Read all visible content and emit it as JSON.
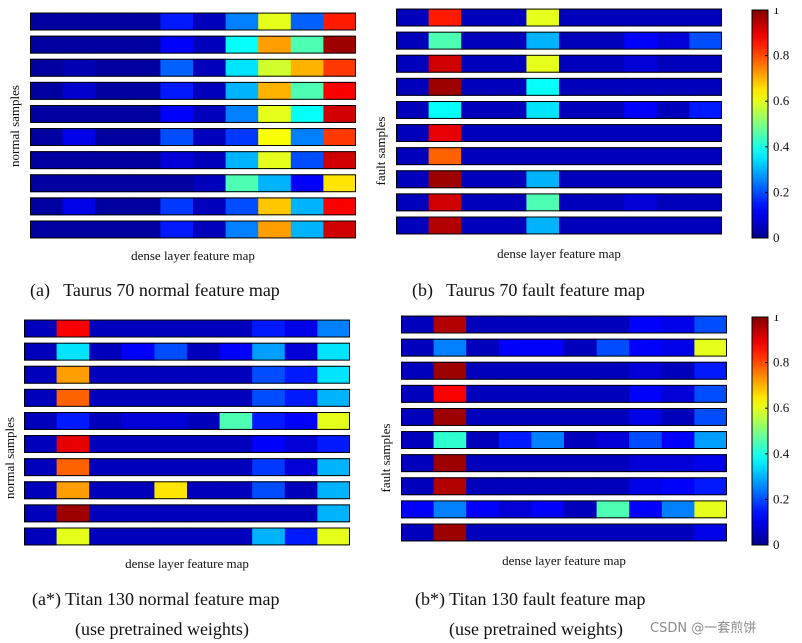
{
  "jet_stops": [
    "#00008f",
    "#0000ff",
    "#00ffff",
    "#ffff00",
    "#ff0000",
    "#800000"
  ],
  "colorbar": {
    "ticks": [
      "0",
      "0.2",
      "0.4",
      "0.6",
      "0.8",
      "1"
    ]
  },
  "watermark": "CSDN @一套煎饼",
  "chart_data": [
    {
      "type": "heatmap",
      "id": "a",
      "caption": "(a)   Taurus 70 normal feature map",
      "ylabel": "normal samples",
      "xlabel": "dense layer feature map",
      "rows": [
        [
          0.02,
          0.02,
          0.02,
          0.02,
          0.15,
          0.05,
          0.25,
          0.6,
          0.22,
          0.85
        ],
        [
          0.02,
          0.02,
          0.02,
          0.02,
          0.12,
          0.05,
          0.38,
          0.72,
          0.45,
          0.97
        ],
        [
          0.02,
          0.04,
          0.02,
          0.02,
          0.22,
          0.05,
          0.35,
          0.58,
          0.7,
          0.82
        ],
        [
          0.02,
          0.07,
          0.02,
          0.02,
          0.15,
          0.05,
          0.3,
          0.7,
          0.45,
          0.88
        ],
        [
          0.02,
          0.02,
          0.02,
          0.02,
          0.12,
          0.05,
          0.25,
          0.6,
          0.38,
          0.92
        ],
        [
          0.02,
          0.1,
          0.02,
          0.02,
          0.2,
          0.05,
          0.18,
          0.62,
          0.25,
          0.82
        ],
        [
          0.02,
          0.02,
          0.02,
          0.02,
          0.08,
          0.05,
          0.3,
          0.6,
          0.2,
          0.92
        ],
        [
          0.02,
          0.02,
          0.02,
          0.02,
          0.02,
          0.05,
          0.45,
          0.3,
          0.12,
          0.65
        ],
        [
          0.02,
          0.1,
          0.02,
          0.02,
          0.18,
          0.05,
          0.2,
          0.68,
          0.3,
          0.88
        ],
        [
          0.02,
          0.02,
          0.02,
          0.02,
          0.15,
          0.05,
          0.25,
          0.72,
          0.3,
          0.92
        ]
      ]
    },
    {
      "type": "heatmap",
      "id": "b",
      "caption": "(b)   Taurus 70 fault feature map",
      "ylabel": "fault samples",
      "xlabel": "dense layer feature map",
      "colorbar": true,
      "rows": [
        [
          0.05,
          0.85,
          0.05,
          0.05,
          0.6,
          0.05,
          0.05,
          0.05,
          0.05,
          0.05
        ],
        [
          0.05,
          0.45,
          0.05,
          0.05,
          0.3,
          0.05,
          0.05,
          0.12,
          0.08,
          0.2
        ],
        [
          0.05,
          0.92,
          0.05,
          0.05,
          0.6,
          0.05,
          0.05,
          0.08,
          0.05,
          0.05
        ],
        [
          0.05,
          0.97,
          0.05,
          0.05,
          0.38,
          0.05,
          0.05,
          0.05,
          0.05,
          0.05
        ],
        [
          0.05,
          0.38,
          0.05,
          0.05,
          0.35,
          0.05,
          0.05,
          0.12,
          0.05,
          0.15
        ],
        [
          0.05,
          0.9,
          0.05,
          0.05,
          0.05,
          0.05,
          0.05,
          0.05,
          0.05,
          0.05
        ],
        [
          0.05,
          0.78,
          0.05,
          0.05,
          0.05,
          0.05,
          0.05,
          0.05,
          0.05,
          0.05
        ],
        [
          0.05,
          0.97,
          0.05,
          0.05,
          0.3,
          0.05,
          0.05,
          0.05,
          0.05,
          0.05
        ],
        [
          0.05,
          0.92,
          0.05,
          0.05,
          0.45,
          0.05,
          0.05,
          0.08,
          0.05,
          0.05
        ],
        [
          0.05,
          0.95,
          0.05,
          0.05,
          0.3,
          0.05,
          0.05,
          0.05,
          0.05,
          0.05
        ]
      ]
    },
    {
      "type": "heatmap",
      "id": "a*",
      "caption": "(a*) Titan 130 normal feature map",
      "caption2": "(use pretrained weights)",
      "ylabel": "normal samples",
      "xlabel": "dense layer feature map",
      "rows": [
        [
          0.05,
          0.88,
          0.05,
          0.05,
          0.05,
          0.05,
          0.05,
          0.15,
          0.1,
          0.25
        ],
        [
          0.05,
          0.35,
          0.05,
          0.12,
          0.2,
          0.05,
          0.12,
          0.28,
          0.08,
          0.35
        ],
        [
          0.05,
          0.72,
          0.05,
          0.05,
          0.05,
          0.05,
          0.05,
          0.2,
          0.15,
          0.35
        ],
        [
          0.05,
          0.78,
          0.05,
          0.05,
          0.05,
          0.05,
          0.05,
          0.2,
          0.15,
          0.3
        ],
        [
          0.05,
          0.15,
          0.05,
          0.08,
          0.08,
          0.05,
          0.45,
          0.15,
          0.12,
          0.6
        ],
        [
          0.05,
          0.9,
          0.05,
          0.05,
          0.05,
          0.05,
          0.05,
          0.12,
          0.08,
          0.15
        ],
        [
          0.05,
          0.78,
          0.05,
          0.05,
          0.05,
          0.05,
          0.05,
          0.18,
          0.08,
          0.3
        ],
        [
          0.05,
          0.72,
          0.05,
          0.05,
          0.65,
          0.05,
          0.05,
          0.2,
          0.05,
          0.3
        ],
        [
          0.05,
          0.97,
          0.05,
          0.05,
          0.05,
          0.05,
          0.05,
          0.05,
          0.05,
          0.3
        ],
        [
          0.05,
          0.6,
          0.05,
          0.05,
          0.05,
          0.05,
          0.05,
          0.3,
          0.15,
          0.6
        ]
      ]
    },
    {
      "type": "heatmap",
      "id": "b*",
      "caption": "(b*) Titan 130 fault feature map",
      "caption2": "(use pretrained weights)",
      "ylabel": "fault samples",
      "xlabel": "dense layer feature map",
      "colorbar": true,
      "rows": [
        [
          0.05,
          0.95,
          0.05,
          0.05,
          0.05,
          0.05,
          0.05,
          0.12,
          0.1,
          0.2
        ],
        [
          0.05,
          0.25,
          0.05,
          0.12,
          0.12,
          0.05,
          0.2,
          0.12,
          0.1,
          0.6
        ],
        [
          0.05,
          0.97,
          0.05,
          0.05,
          0.05,
          0.05,
          0.05,
          0.08,
          0.05,
          0.15
        ],
        [
          0.05,
          0.88,
          0.05,
          0.05,
          0.05,
          0.05,
          0.05,
          0.12,
          0.08,
          0.2
        ],
        [
          0.05,
          0.97,
          0.05,
          0.05,
          0.05,
          0.05,
          0.05,
          0.1,
          0.05,
          0.2
        ],
        [
          0.05,
          0.42,
          0.05,
          0.15,
          0.25,
          0.05,
          0.08,
          0.2,
          0.12,
          0.28
        ],
        [
          0.05,
          0.97,
          0.05,
          0.05,
          0.05,
          0.05,
          0.05,
          0.08,
          0.08,
          0.1
        ],
        [
          0.05,
          0.95,
          0.05,
          0.05,
          0.05,
          0.05,
          0.05,
          0.1,
          0.12,
          0.15
        ],
        [
          0.12,
          0.25,
          0.12,
          0.08,
          0.12,
          0.05,
          0.45,
          0.12,
          0.25,
          0.6
        ],
        [
          0.05,
          0.97,
          0.05,
          0.05,
          0.05,
          0.05,
          0.05,
          0.05,
          0.05,
          0.1
        ]
      ]
    }
  ]
}
